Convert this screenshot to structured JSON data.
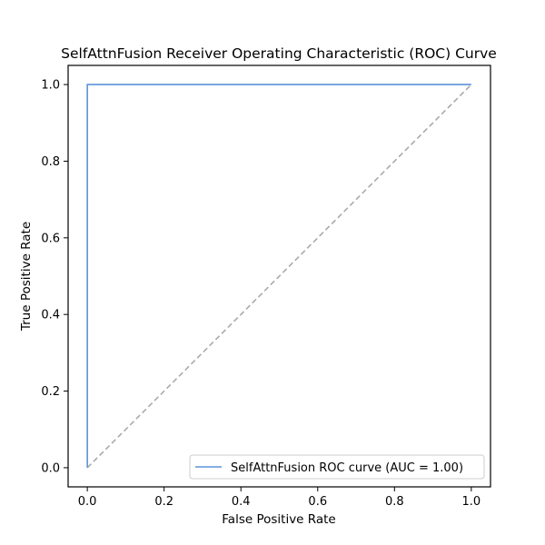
{
  "chart_data": {
    "type": "line",
    "title": "SelfAttnFusion Receiver Operating Characteristic (ROC) Curve",
    "xlabel": "False Positive Rate",
    "ylabel": "True Positive Rate",
    "xlim": [
      -0.05,
      1.05
    ],
    "ylim": [
      -0.05,
      1.05
    ],
    "xticks": [
      0.0,
      0.2,
      0.4,
      0.6,
      0.8,
      1.0
    ],
    "yticks": [
      0.0,
      0.2,
      0.4,
      0.6,
      0.8,
      1.0
    ],
    "xtick_labels": [
      "0.0",
      "0.2",
      "0.4",
      "0.6",
      "0.8",
      "1.0"
    ],
    "ytick_labels": [
      "0.0",
      "0.2",
      "0.4",
      "0.6",
      "0.8",
      "1.0"
    ],
    "grid": false,
    "legend_position": "lower-right",
    "series": [
      {
        "name": "SelfAttnFusion ROC curve (AUC = 1.00)",
        "color": "#5b93d8",
        "style": "solid",
        "x": [
          0.0,
          0.0,
          1.0
        ],
        "y": [
          0.0,
          1.0,
          1.0
        ]
      },
      {
        "color": "#aaaaaa",
        "style": "dashed",
        "x": [
          0.0,
          1.0
        ],
        "y": [
          0.0,
          1.0
        ]
      }
    ]
  }
}
